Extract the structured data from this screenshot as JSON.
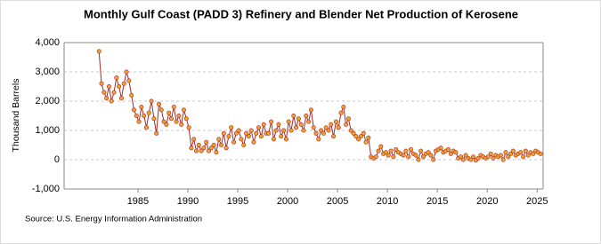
{
  "chart_data": {
    "type": "line",
    "title": "Monthly Gulf Coast (PADD 3) Refinery and Blender Net Production of Kerosene",
    "y_label": "Thousand Barrels",
    "source": "Source: U.S. Energy Information Administration",
    "grid": true,
    "xlim": [
      1977.6,
      2025.6
    ],
    "ylim": [
      -1000,
      4000
    ],
    "xticks": [
      1985,
      1990,
      1995,
      2000,
      2005,
      2010,
      2015,
      2020,
      2025
    ],
    "yticks": [
      {
        "value": -1000,
        "label": "-1,000"
      },
      0,
      {
        "value": 1000,
        "label": "1,000"
      },
      {
        "value": 2000,
        "label": "2,000"
      },
      {
        "value": 3000,
        "label": "3,000"
      },
      {
        "value": 4000,
        "label": "4,000"
      }
    ],
    "series": [
      {
        "color": "#a52a2a",
        "marker_color": "#f0a030",
        "x": [
          1981.1,
          1981.35,
          1981.6,
          1981.85,
          1982.1,
          1982.35,
          1982.6,
          1982.85,
          1983.1,
          1983.35,
          1983.6,
          1983.85,
          1984.1,
          1984.35,
          1984.6,
          1984.85,
          1985.1,
          1985.35,
          1985.6,
          1985.85,
          1986.1,
          1986.35,
          1986.6,
          1986.85,
          1987.1,
          1987.35,
          1987.6,
          1987.85,
          1988.1,
          1988.35,
          1988.6,
          1988.85,
          1989.1,
          1989.35,
          1989.6,
          1989.85,
          1990.1,
          1990.35,
          1990.6,
          1990.85,
          1991.1,
          1991.35,
          1991.6,
          1991.85,
          1992.1,
          1992.35,
          1992.6,
          1992.85,
          1993.1,
          1993.35,
          1993.6,
          1993.85,
          1994.1,
          1994.35,
          1994.6,
          1994.85,
          1995.1,
          1995.35,
          1995.6,
          1995.85,
          1996.1,
          1996.35,
          1996.6,
          1996.85,
          1997.1,
          1997.35,
          1997.6,
          1997.85,
          1998.1,
          1998.35,
          1998.6,
          1998.85,
          1999.1,
          1999.35,
          1999.6,
          1999.85,
          2000.1,
          2000.35,
          2000.6,
          2000.85,
          2001.1,
          2001.35,
          2001.6,
          2001.85,
          2002.1,
          2002.35,
          2002.6,
          2002.85,
          2003.1,
          2003.35,
          2003.6,
          2003.85,
          2004.1,
          2004.35,
          2004.6,
          2004.85,
          2005.1,
          2005.35,
          2005.6,
          2005.85,
          2006.1,
          2006.35,
          2006.6,
          2006.85,
          2007.1,
          2007.35,
          2007.6,
          2007.85,
          2008.1,
          2008.35,
          2008.6,
          2008.85,
          2009.1,
          2009.35,
          2009.6,
          2009.85,
          2010.1,
          2010.35,
          2010.6,
          2010.85,
          2011.1,
          2011.35,
          2011.6,
          2011.85,
          2012.1,
          2012.35,
          2012.6,
          2012.85,
          2013.1,
          2013.35,
          2013.6,
          2013.85,
          2014.1,
          2014.35,
          2014.6,
          2014.85,
          2015.1,
          2015.35,
          2015.6,
          2015.85,
          2016.1,
          2016.35,
          2016.6,
          2016.85,
          2017.1,
          2017.35,
          2017.6,
          2017.85,
          2018.1,
          2018.35,
          2018.6,
          2018.85,
          2019.1,
          2019.35,
          2019.6,
          2019.85,
          2020.1,
          2020.35,
          2020.6,
          2020.85,
          2021.1,
          2021.35,
          2021.6,
          2021.85,
          2022.1,
          2022.35,
          2022.6,
          2022.85,
          2023.1,
          2023.35,
          2023.6,
          2023.85,
          2024.1,
          2024.35,
          2024.6,
          2024.85,
          2025.1,
          2025.35
        ],
        "values": [
          3700,
          2600,
          2300,
          2100,
          2500,
          2000,
          2300,
          2800,
          2500,
          2100,
          2600,
          3000,
          2700,
          2200,
          1700,
          1500,
          1300,
          1800,
          1500,
          1100,
          1600,
          2000,
          1400,
          900,
          1900,
          1700,
          1300,
          1200,
          1600,
          1400,
          1800,
          1300,
          1500,
          1200,
          1700,
          1400,
          1100,
          400,
          700,
          300,
          500,
          300,
          400,
          600,
          300,
          400,
          500,
          250,
          700,
          500,
          900,
          400,
          800,
          1100,
          600,
          900,
          1000,
          700,
          500,
          900,
          800,
          1000,
          600,
          900,
          1100,
          800,
          1200,
          900,
          900,
          1300,
          700,
          1000,
          1200,
          800,
          1000,
          700,
          1300,
          1000,
          1500,
          1100,
          1400,
          1200,
          1000,
          1500,
          1300,
          1700,
          1100,
          900,
          700,
          1000,
          900,
          1100,
          1000,
          1200,
          800,
          1300,
          1100,
          1600,
          1800,
          1200,
          1400,
          1000,
          900,
          800,
          700,
          800,
          900,
          600,
          750,
          100,
          50,
          100,
          300,
          450,
          200,
          250,
          150,
          300,
          100,
          350,
          250,
          200,
          150,
          300,
          100,
          350,
          200,
          150,
          0,
          300,
          100,
          200,
          250,
          150,
          0,
          300,
          350,
          400,
          250,
          300,
          350,
          200,
          300,
          250,
          50,
          100,
          0,
          150,
          50,
          0,
          100,
          -20,
          50,
          150,
          100,
          50,
          100,
          200,
          50,
          150,
          100,
          150,
          0,
          250,
          100,
          200,
          300,
          150,
          200,
          250,
          100,
          300,
          150,
          250,
          200,
          300,
          250,
          200
        ]
      }
    ]
  }
}
